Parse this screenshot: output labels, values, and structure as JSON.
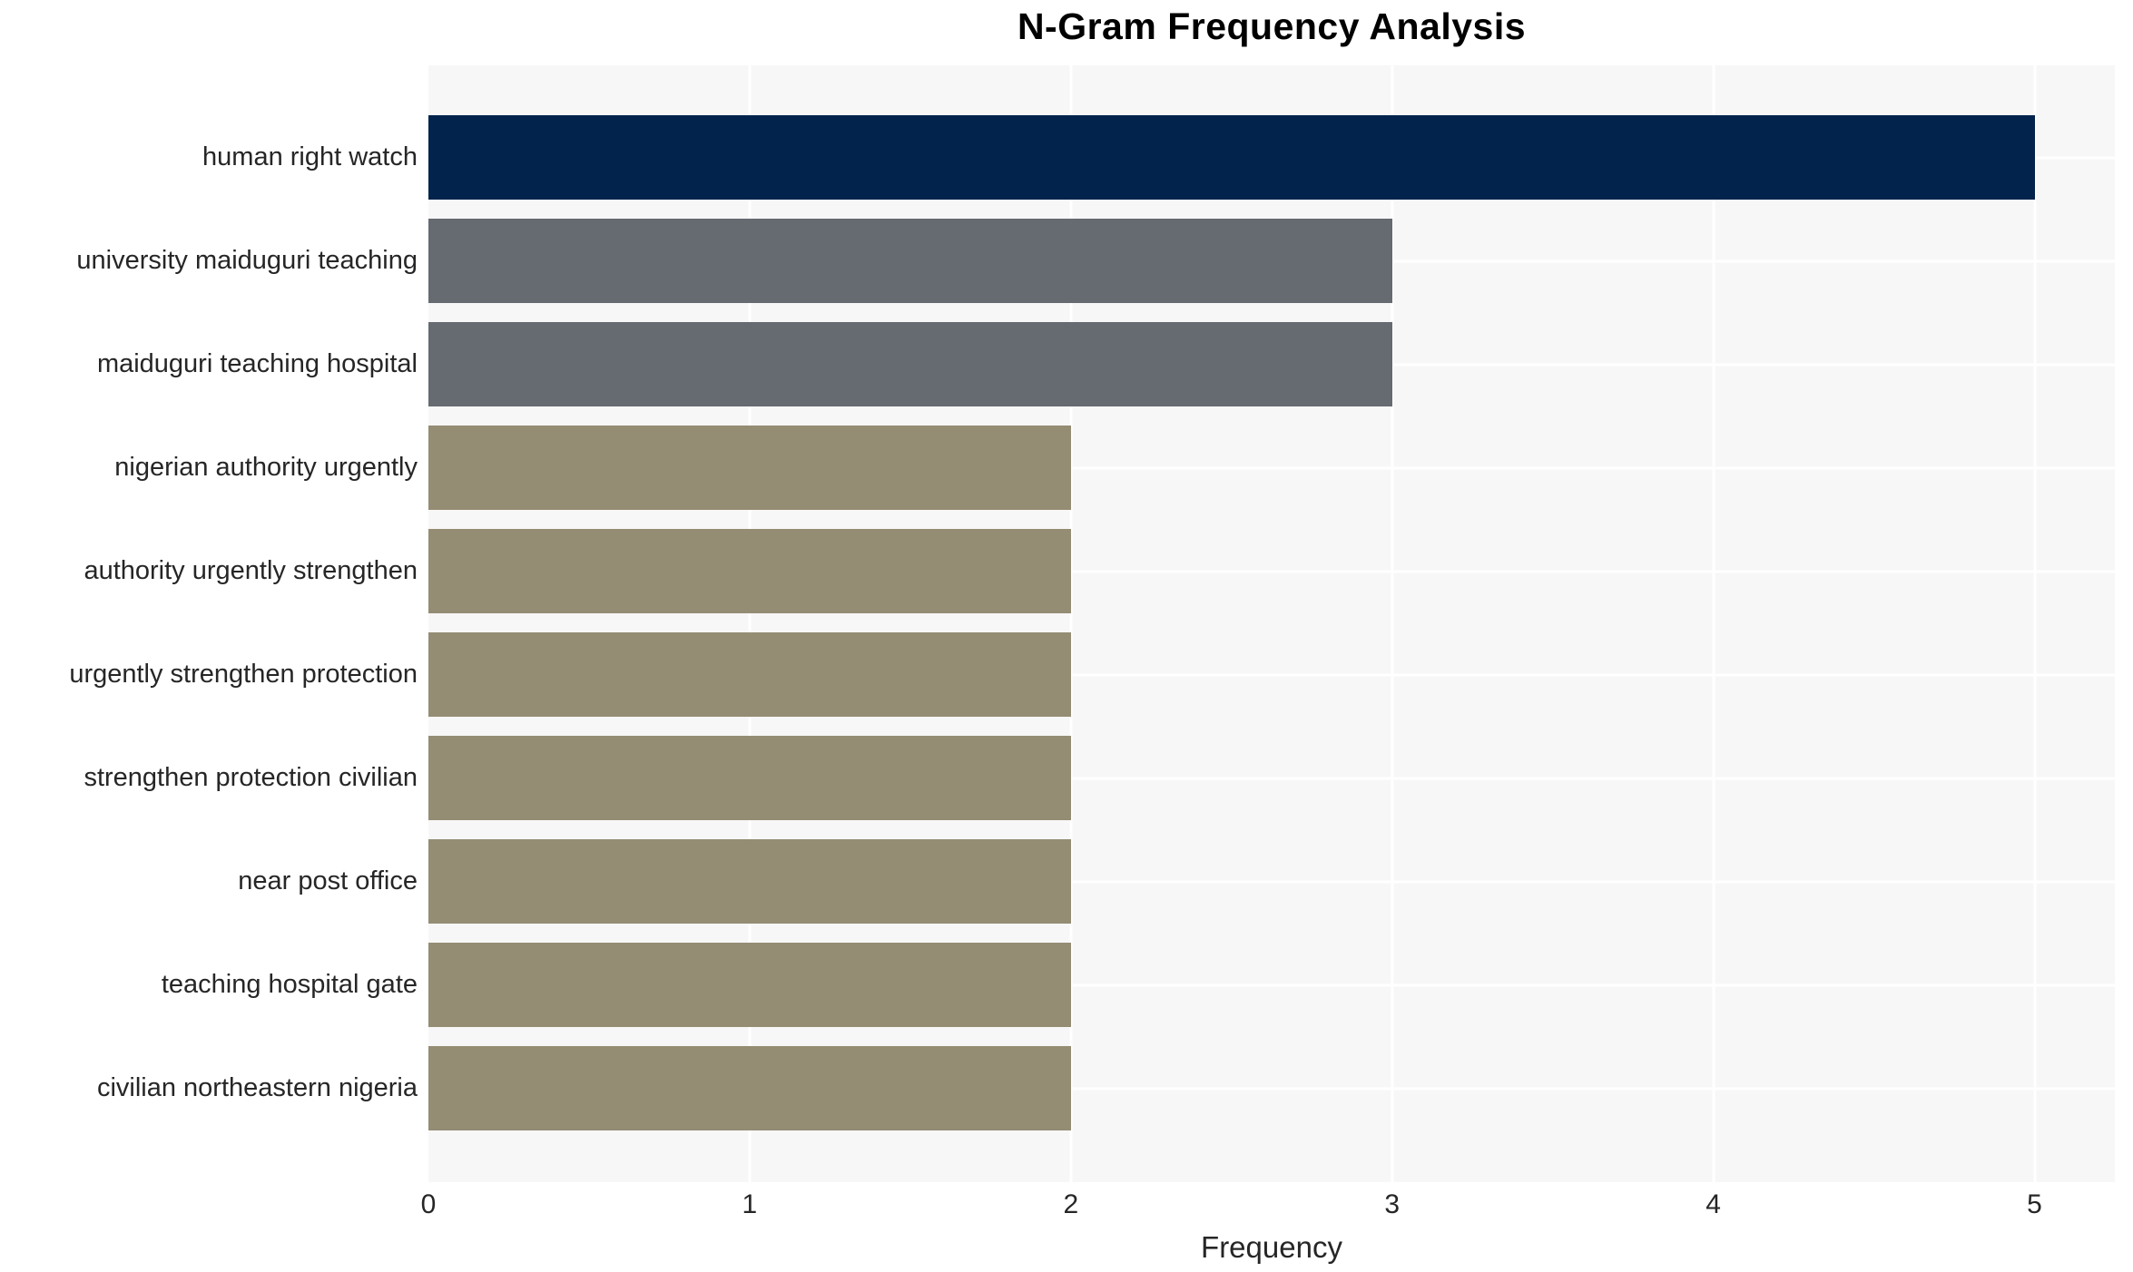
{
  "chart_data": {
    "type": "bar",
    "orientation": "horizontal",
    "title": "N-Gram Frequency Analysis",
    "xlabel": "Frequency",
    "ylabel": "",
    "categories": [
      "human right watch",
      "university maiduguri teaching",
      "maiduguri teaching hospital",
      "nigerian authority urgently",
      "authority urgently strengthen",
      "urgently strengthen protection",
      "strengthen protection civilian",
      "near post office",
      "teaching hospital gate",
      "civilian northeastern nigeria"
    ],
    "values": [
      5,
      3,
      3,
      2,
      2,
      2,
      2,
      2,
      2,
      2
    ],
    "bar_colors": [
      "#02234c",
      "#666a71",
      "#666a71",
      "#948d74",
      "#948d74",
      "#948d74",
      "#948d74",
      "#948d74",
      "#948d74",
      "#948d74"
    ],
    "xlim": [
      0,
      5.25
    ],
    "xticks": [
      0,
      1,
      2,
      3,
      4,
      5
    ],
    "grid": true,
    "legend": "none",
    "plot_background": "#f7f7f7",
    "grid_color": "#ffffff",
    "text_color": "#262626"
  }
}
